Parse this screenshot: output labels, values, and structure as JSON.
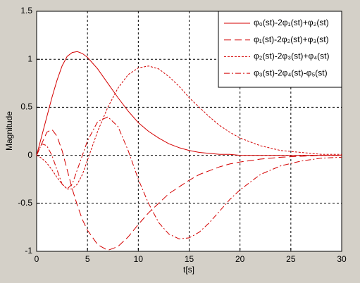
{
  "chart_data": {
    "type": "line",
    "xlabel": "t[s]",
    "ylabel": "Magnitude",
    "x": [
      0,
      0.5,
      1,
      1.5,
      2,
      2.5,
      3,
      3.5,
      4,
      4.5,
      5,
      6,
      7,
      8,
      9,
      10,
      11,
      12,
      13,
      14,
      15,
      16,
      17,
      18,
      19,
      20,
      22,
      24,
      26,
      28,
      30
    ],
    "series": [
      {
        "name": "φ₀(st)-2φ₁(st)+φ₂(st)",
        "color": "#d40000",
        "dash": "solid",
        "values": [
          0,
          0.2,
          0.4,
          0.6,
          0.78,
          0.93,
          1.03,
          1.07,
          1.08,
          1.06,
          1.02,
          0.9,
          0.75,
          0.6,
          0.46,
          0.34,
          0.25,
          0.18,
          0.12,
          0.08,
          0.05,
          0.03,
          0.02,
          0.01,
          0.01,
          0,
          0,
          0,
          0,
          0,
          0
        ]
      },
      {
        "name": "φ₁(st)-2φ₂(st)+φ₃(st)",
        "color": "#d40000",
        "dash": "dashed",
        "values": [
          0,
          0.12,
          0.24,
          0.27,
          0.2,
          0.05,
          -0.15,
          -0.35,
          -0.52,
          -0.67,
          -0.78,
          -0.93,
          -0.99,
          -0.95,
          -0.85,
          -0.72,
          -0.6,
          -0.5,
          -0.4,
          -0.33,
          -0.26,
          -0.2,
          -0.16,
          -0.12,
          -0.09,
          -0.07,
          -0.04,
          -0.02,
          -0.01,
          0,
          0
        ]
      },
      {
        "name": "φ₂(st)-2φ₃(st)+φ₄(st)",
        "color": "#d40000",
        "dash": "dotted",
        "values": [
          0,
          -0.03,
          -0.08,
          -0.15,
          -0.23,
          -0.3,
          -0.35,
          -0.35,
          -0.3,
          -0.2,
          -0.05,
          0.25,
          0.5,
          0.7,
          0.84,
          0.91,
          0.93,
          0.9,
          0.82,
          0.72,
          0.6,
          0.5,
          0.4,
          0.31,
          0.24,
          0.18,
          0.1,
          0.05,
          0.03,
          0.01,
          0.01
        ]
      },
      {
        "name": "φ₃(st)-2φ₄(st)-φ₅(st)",
        "color": "#d40000",
        "dash": "dashdot",
        "values": [
          0,
          0.12,
          0.1,
          0,
          -0.15,
          -0.3,
          -0.35,
          -0.3,
          -0.15,
          0,
          0.15,
          0.35,
          0.4,
          0.3,
          0.05,
          -0.25,
          -0.5,
          -0.7,
          -0.82,
          -0.87,
          -0.86,
          -0.8,
          -0.7,
          -0.58,
          -0.46,
          -0.36,
          -0.2,
          -0.11,
          -0.06,
          -0.03,
          -0.02
        ]
      }
    ],
    "xlim": [
      0,
      30
    ],
    "xticks": [
      0,
      5,
      10,
      15,
      20,
      25,
      30
    ],
    "ylim": [
      -1,
      1.5
    ],
    "yticks": [
      -1,
      -0.5,
      0,
      0.5,
      1,
      1.5
    ],
    "grid": true,
    "legend": "upper right"
  }
}
